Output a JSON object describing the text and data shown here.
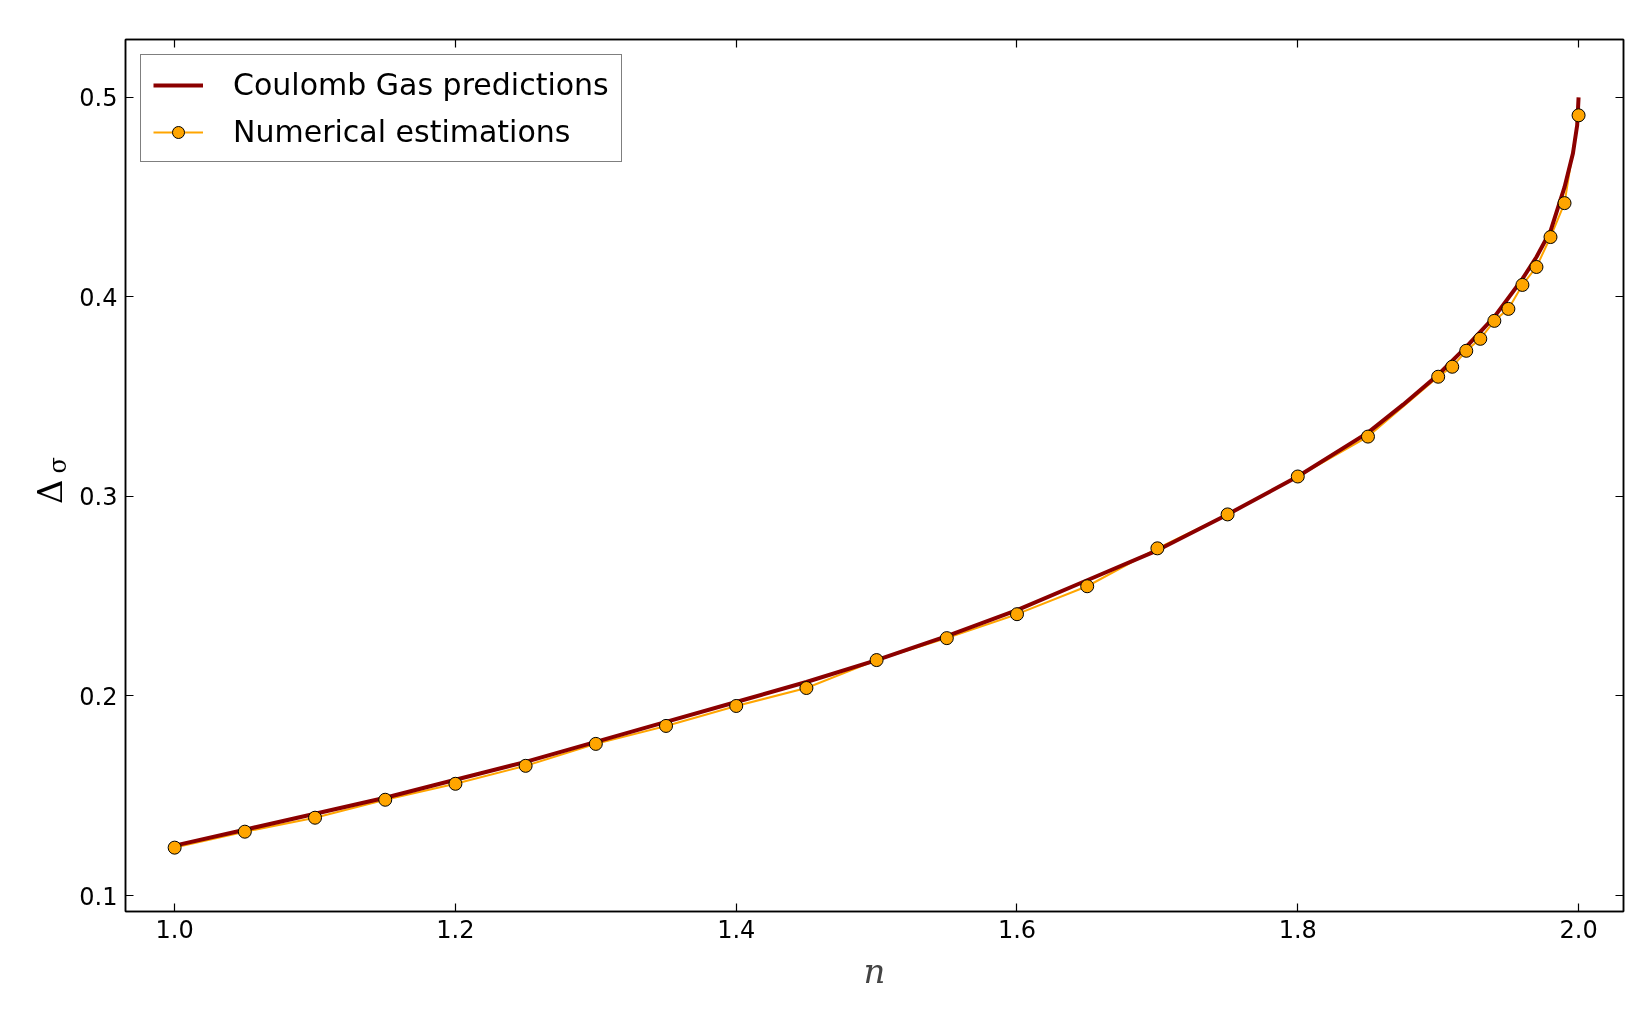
{
  "chart_data": {
    "type": "line",
    "xlabel": "n",
    "ylabel": "Δ$_{σ}$",
    "xlim": [
      0.965,
      2.032
    ],
    "ylim": [
      0.092,
      0.529
    ],
    "xticks": [
      {
        "value": 1,
        "label": "1.0"
      },
      1.2,
      1.4,
      1.6,
      1.8,
      {
        "value": 2,
        "label": "2.0"
      }
    ],
    "yticks": [
      0.1,
      0.2,
      0.3,
      0.4,
      0.5
    ],
    "legend": "top left",
    "series": [
      {
        "name": "Coulomb Gas predictions",
        "marker": "none",
        "color": "#8b0000",
        "x": [
          1.0,
          1.05,
          1.1,
          1.15,
          1.2,
          1.25,
          1.3,
          1.35,
          1.4,
          1.45,
          1.5,
          1.55,
          1.6,
          1.65,
          1.7,
          1.75,
          1.8,
          1.85,
          1.875,
          1.9,
          1.92,
          1.94,
          1.96,
          1.97,
          1.98,
          1.99,
          1.996,
          1.999,
          2.0
        ],
        "values": [
          0.125,
          0.133,
          0.141,
          0.149,
          0.158,
          0.167,
          0.177,
          0.187,
          0.197,
          0.207,
          0.218,
          0.23,
          0.243,
          0.258,
          0.273,
          0.291,
          0.31,
          0.332,
          0.346,
          0.361,
          0.375,
          0.39,
          0.409,
          0.42,
          0.433,
          0.455,
          0.472,
          0.486,
          0.5
        ]
      },
      {
        "name": "Numerical estimations",
        "marker": "circle",
        "color": "#ffa500",
        "x": [
          1.0,
          1.05,
          1.1,
          1.15,
          1.2,
          1.25,
          1.3,
          1.35,
          1.4,
          1.45,
          1.5,
          1.55,
          1.6,
          1.65,
          1.7,
          1.75,
          1.8,
          1.85,
          1.9,
          1.91,
          1.92,
          1.93,
          1.94,
          1.95,
          1.96,
          1.97,
          1.98,
          1.99,
          2.0
        ],
        "values": [
          0.124,
          0.132,
          0.139,
          0.148,
          0.156,
          0.165,
          0.176,
          0.185,
          0.195,
          0.204,
          0.218,
          0.229,
          0.241,
          0.255,
          0.274,
          0.291,
          0.31,
          0.33,
          0.36,
          0.365,
          0.373,
          0.379,
          0.388,
          0.394,
          0.406,
          0.415,
          0.43,
          0.447,
          0.491
        ]
      }
    ]
  }
}
